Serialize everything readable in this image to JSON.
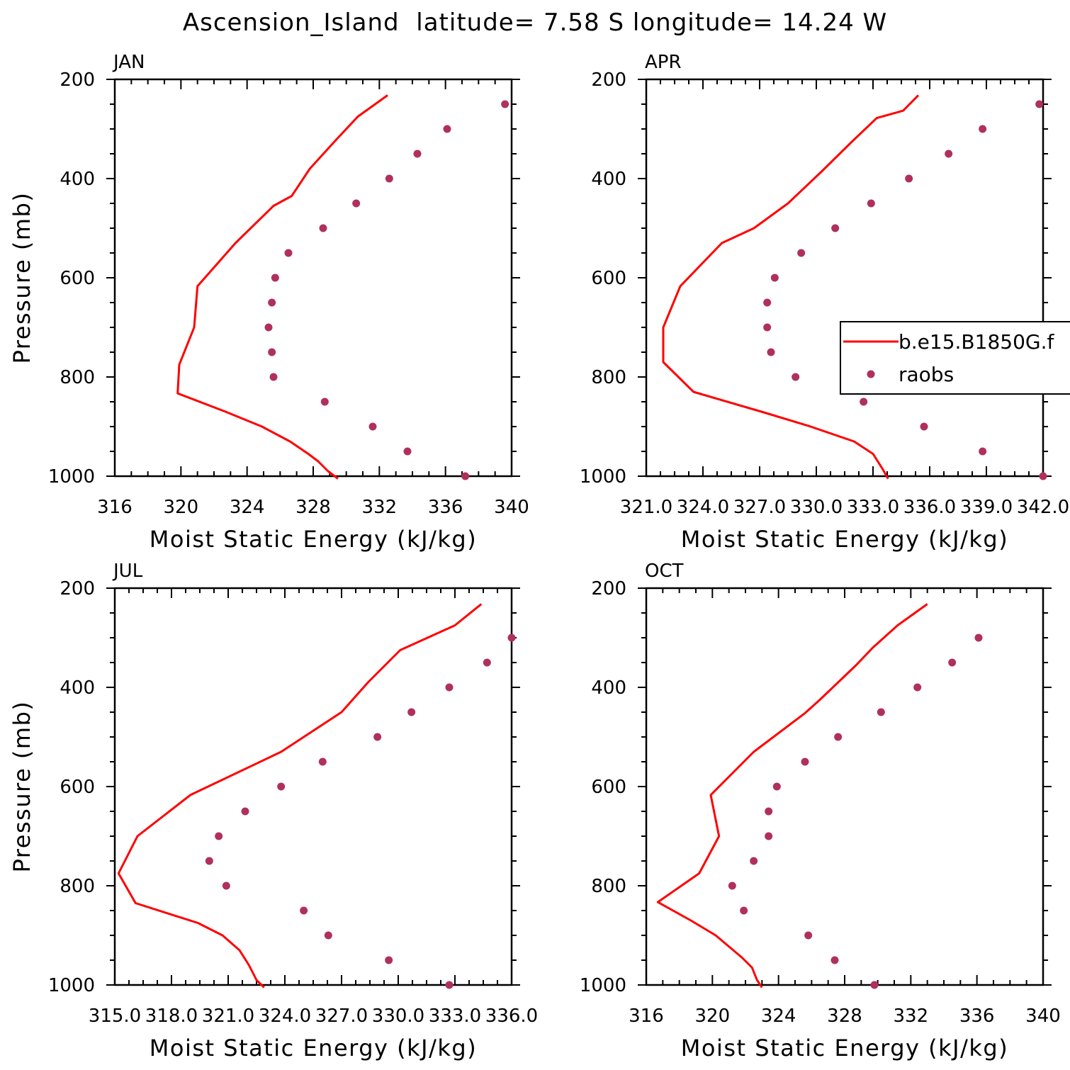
{
  "title": "Ascension_Island  latitude= 7.58 S longitude= 14.24 W",
  "legend": {
    "model_label": "b.e15.B1850G.f",
    "obs_label": "raobs"
  },
  "colors": {
    "model_line": "#ff0000",
    "obs_marker": "#b0305c"
  },
  "chart_data": [
    {
      "panel": "JAN",
      "type": "line+scatter",
      "xlabel": "Moist Static Energy (kJ/kg)",
      "ylabel": "Pressure (mb)",
      "xlim": [
        316,
        340
      ],
      "ylim": [
        200,
        1000
      ],
      "y_inverted": true,
      "xticks": [
        "316",
        "320",
        "324",
        "328",
        "332",
        "336",
        "340"
      ],
      "yticks": [
        "200",
        "400",
        "600",
        "800",
        "1000"
      ],
      "series": [
        {
          "kind": "line",
          "x": [
            332.5,
            330.7,
            329.3,
            327.8,
            326.7,
            325.6,
            323.3,
            321.0,
            320.8,
            319.9,
            319.8,
            322.7,
            324.9,
            326.6,
            327.7,
            328.3,
            328.9,
            329.5
          ],
          "y": [
            232,
            275,
            325,
            380,
            435,
            455,
            530,
            617,
            700,
            775,
            833,
            870,
            900,
            930,
            955,
            970,
            990,
            1005
          ]
        },
        {
          "kind": "scatter",
          "x": [
            339.6,
            336.1,
            334.3,
            332.6,
            330.6,
            328.6,
            326.5,
            325.7,
            325.5,
            325.3,
            325.5,
            325.6,
            328.7,
            331.6,
            333.7,
            337.2
          ],
          "y": [
            250,
            300,
            350,
            400,
            450,
            500,
            550,
            600,
            650,
            700,
            750,
            800,
            850,
            900,
            950,
            1000
          ]
        }
      ]
    },
    {
      "panel": "APR",
      "type": "line+scatter",
      "xlabel": "Moist Static Energy (kJ/kg)",
      "ylabel": "",
      "xlim": [
        321,
        342
      ],
      "ylim": [
        200,
        1000
      ],
      "y_inverted": true,
      "legend_position": "right",
      "xticks": [
        "321.0",
        "324.0",
        "327.0",
        "330.0",
        "333.0",
        "336.0",
        "339.0",
        "342.0"
      ],
      "yticks": [
        "200",
        "400",
        "600",
        "800",
        "1000"
      ],
      "series": [
        {
          "kind": "line",
          "x": [
            335.4,
            334.6,
            333.2,
            331.9,
            330.3,
            328.5,
            326.7,
            325.0,
            322.8,
            321.9,
            321.9,
            323.5,
            327.1,
            329.7,
            332.0,
            333.0,
            333.5,
            333.8
          ],
          "y": [
            232,
            263,
            278,
            325,
            385,
            450,
            500,
            530,
            617,
            700,
            770,
            830,
            870,
            900,
            930,
            955,
            985,
            1005
          ]
        },
        {
          "kind": "scatter",
          "x": [
            341.8,
            338.8,
            337.0,
            334.9,
            332.9,
            331.0,
            329.2,
            327.8,
            327.4,
            327.4,
            327.6,
            328.9,
            332.5,
            335.7,
            338.8,
            342.0
          ],
          "y": [
            250,
            300,
            350,
            400,
            450,
            500,
            550,
            600,
            650,
            700,
            750,
            800,
            850,
            900,
            950,
            1000
          ]
        }
      ]
    },
    {
      "panel": "JUL",
      "type": "line+scatter",
      "xlabel": "Moist Static Energy (kJ/kg)",
      "ylabel": "Pressure (mb)",
      "xlim": [
        315,
        336
      ],
      "ylim": [
        200,
        1000
      ],
      "y_inverted": true,
      "xticks": [
        "315.0",
        "318.0",
        "321.0",
        "324.0",
        "327.0",
        "330.0",
        "333.0",
        "336.0"
      ],
      "yticks": [
        "200",
        "400",
        "600",
        "800",
        "1000"
      ],
      "series": [
        {
          "kind": "line",
          "x": [
            334.4,
            333.0,
            330.1,
            328.4,
            327.0,
            323.8,
            319.0,
            316.2,
            315.2,
            316.1,
            319.4,
            320.7,
            321.6,
            322.1,
            322.5,
            322.9
          ],
          "y": [
            232,
            275,
            325,
            390,
            450,
            530,
            617,
            700,
            775,
            835,
            875,
            900,
            930,
            960,
            990,
            1005
          ]
        },
        {
          "kind": "scatter",
          "x": [
            336.0,
            334.7,
            332.7,
            330.7,
            328.9,
            326.0,
            323.8,
            321.9,
            320.5,
            320.0,
            320.9,
            325.0,
            326.3,
            329.5,
            332.7
          ],
          "y": [
            300,
            350,
            400,
            450,
            500,
            550,
            600,
            650,
            700,
            750,
            800,
            850,
            900,
            950,
            1000
          ]
        }
      ]
    },
    {
      "panel": "OCT",
      "type": "line+scatter",
      "xlabel": "Moist Static Energy (kJ/kg)",
      "ylabel": "",
      "xlim": [
        316,
        340
      ],
      "ylim": [
        200,
        1000
      ],
      "y_inverted": true,
      "xticks": [
        "316",
        "320",
        "324",
        "328",
        "332",
        "336",
        "340"
      ],
      "yticks": [
        "200",
        "400",
        "600",
        "800",
        "1000"
      ],
      "series": [
        {
          "kind": "line",
          "x": [
            333.0,
            331.2,
            329.7,
            328.7,
            327.6,
            326.5,
            325.6,
            322.5,
            319.9,
            320.4,
            319.2,
            316.7,
            318.7,
            320.2,
            321.8,
            322.4,
            322.7,
            323.0
          ],
          "y": [
            232,
            275,
            320,
            355,
            390,
            425,
            452,
            530,
            617,
            700,
            775,
            833,
            870,
            900,
            945,
            965,
            990,
            1005
          ]
        },
        {
          "kind": "scatter",
          "x": [
            336.1,
            334.5,
            332.4,
            330.2,
            327.6,
            325.6,
            323.9,
            323.4,
            323.4,
            322.5,
            321.2,
            321.9,
            325.8,
            327.4,
            329.8
          ],
          "y": [
            300,
            350,
            400,
            450,
            500,
            550,
            600,
            650,
            700,
            750,
            800,
            850,
            900,
            950,
            1000
          ]
        }
      ]
    }
  ]
}
